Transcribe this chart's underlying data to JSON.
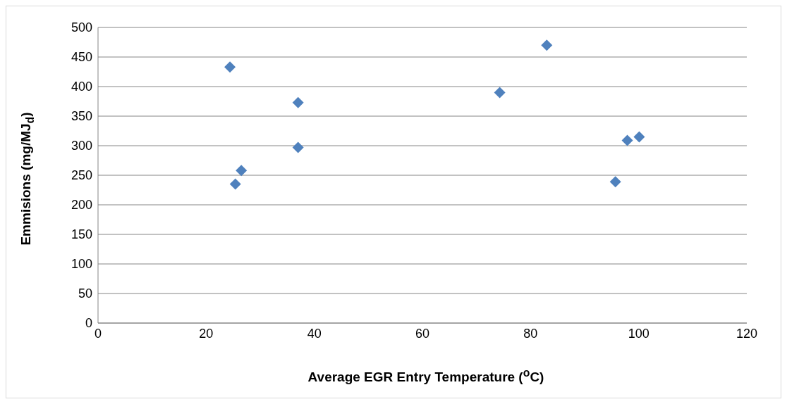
{
  "chart_data": {
    "type": "scatter",
    "xlabel": "Average EGR Entry Temperature ($^{o}$C)",
    "ylabel": "Emmisions (mg/MJ$_{d}$)",
    "x": [
      24.4,
      25.4,
      26.5,
      37.0,
      37.0,
      74.3,
      83.0,
      95.7,
      97.9,
      100.1
    ],
    "values": [
      433,
      235,
      258,
      373,
      297,
      390,
      470,
      239,
      309,
      315
    ],
    "color": "#4f81bd",
    "marker": "diamond",
    "xlim": [
      0,
      120
    ],
    "xticks": [
      0,
      20,
      40,
      60,
      80,
      100,
      120
    ],
    "ylim": [
      0,
      500
    ],
    "yticks": [
      0,
      50,
      100,
      150,
      200,
      250,
      300,
      350,
      400,
      450,
      500
    ],
    "grid": "y"
  }
}
